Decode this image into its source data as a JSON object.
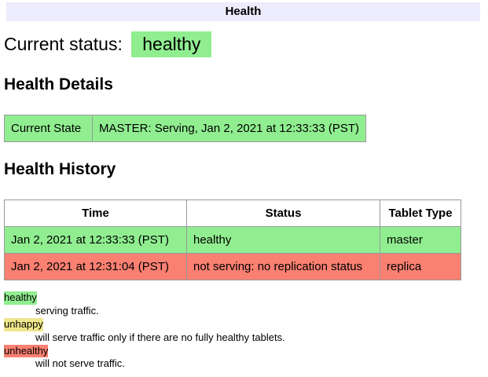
{
  "header": {
    "title": "Health"
  },
  "current_status": {
    "label": "Current status:",
    "value": "healthy",
    "state": "healthy"
  },
  "details": {
    "heading": "Health Details",
    "row": {
      "label": "Current State",
      "value": "MASTER: Serving, Jan 2, 2021 at 12:33:33 (PST)",
      "state": "healthy"
    }
  },
  "history": {
    "heading": "Health History",
    "columns": [
      "Time",
      "Status",
      "Tablet Type"
    ],
    "rows": [
      {
        "time": "Jan 2, 2021 at 12:33:33 (PST)",
        "status": "healthy",
        "tablet_type": "master",
        "state": "healthy"
      },
      {
        "time": "Jan 2, 2021 at 12:31:04 (PST)",
        "status": "not serving: no replication status",
        "tablet_type": "replica",
        "state": "unhealthy"
      }
    ]
  },
  "legend": [
    {
      "term": "healthy",
      "state": "healthy",
      "description": "serving traffic."
    },
    {
      "term": "unhappy",
      "state": "unhappy",
      "description": "will serve traffic only if there are no fully healthy tablets."
    },
    {
      "term": "unhealthy",
      "state": "unhealthy",
      "description": "will not serve traffic."
    }
  ],
  "colors": {
    "healthy": "#90EE90",
    "unhappy": "#F0E68C",
    "unhealthy": "#FA8072",
    "header_bg": "#ECECFC",
    "table_border": "#999999"
  }
}
